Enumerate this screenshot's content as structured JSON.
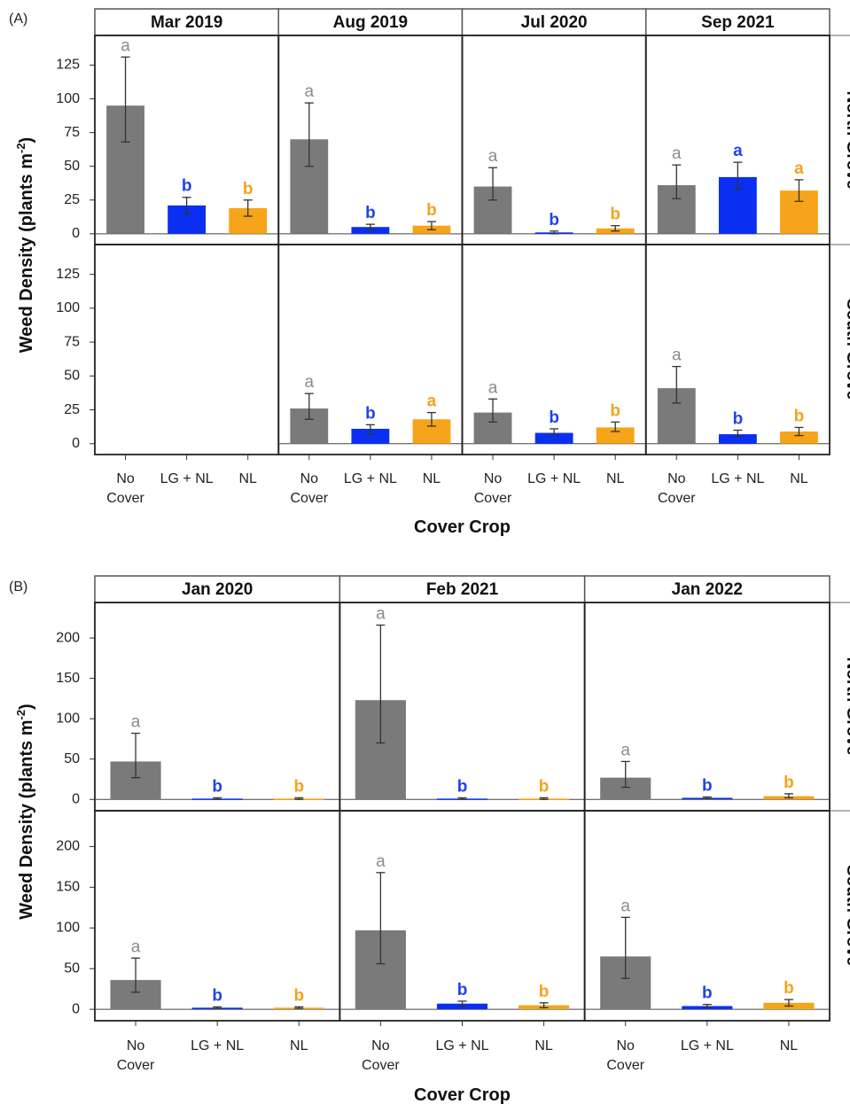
{
  "colors": {
    "no_cover": "#7a7a7a",
    "lg_nl": "#0a2ff2",
    "nl": "#f6a419",
    "letter_no_cover": "#8c8c8c",
    "letter_lg_nl": "#1f44e6",
    "letter_nl": "#f5a21c"
  },
  "chart_data": [
    {
      "type": "bar",
      "panel_label": "(A)",
      "xlabel": "Cover Crop",
      "ylabel": "Weed Density (plants m",
      "ylabel_sup": "-2",
      "ylabel_tail": ")",
      "categories": [
        "No Cover",
        "LG + NL",
        "NL"
      ],
      "category_lines": [
        [
          "No",
          "Cover"
        ],
        [
          "LG + NL"
        ],
        [
          "NL"
        ]
      ],
      "columns": [
        "Mar 2019",
        "Aug 2019",
        "Jul 2020",
        "Sep 2021"
      ],
      "rows": [
        "North Grove",
        "South Grove"
      ],
      "ylim": [
        -8,
        147
      ],
      "yticks": [
        0,
        25,
        50,
        75,
        100,
        125
      ],
      "cells": [
        [
          {
            "values": [
              95,
              21,
              19
            ],
            "err_low": [
              68,
              15,
              13
            ],
            "err_high": [
              131,
              27,
              25
            ],
            "letters": [
              "a",
              "b",
              "b"
            ]
          },
          {
            "values": [
              70,
              5,
              6
            ],
            "err_low": [
              50,
              3,
              3
            ],
            "err_high": [
              97,
              7,
              9
            ],
            "letters": [
              "a",
              "b",
              "b"
            ]
          },
          {
            "values": [
              35,
              1,
              4
            ],
            "err_low": [
              25,
              0,
              2
            ],
            "err_high": [
              49,
              2,
              6
            ],
            "letters": [
              "a",
              "b",
              "b"
            ]
          },
          {
            "values": [
              36,
              42,
              32
            ],
            "err_low": [
              26,
              33,
              24
            ],
            "err_high": [
              51,
              53,
              40
            ],
            "letters": [
              "a",
              "a",
              "a"
            ]
          }
        ],
        [
          null,
          {
            "values": [
              26,
              11,
              18
            ],
            "err_low": [
              18,
              7,
              13
            ],
            "err_high": [
              37,
              14,
              23
            ],
            "letters": [
              "a",
              "b",
              "a"
            ]
          },
          {
            "values": [
              23,
              8,
              12
            ],
            "err_low": [
              16,
              6,
              9
            ],
            "err_high": [
              33,
              11,
              16
            ],
            "letters": [
              "a",
              "b",
              "b"
            ]
          },
          {
            "values": [
              41,
              7,
              9
            ],
            "err_low": [
              30,
              5,
              6
            ],
            "err_high": [
              57,
              10,
              12
            ],
            "letters": [
              "a",
              "b",
              "b"
            ]
          }
        ]
      ]
    },
    {
      "type": "bar",
      "panel_label": "(B)",
      "xlabel": "Cover Crop",
      "ylabel": "Weed Density (plants m",
      "ylabel_sup": "-2",
      "ylabel_tail": ")",
      "categories": [
        "No Cover",
        "LG + NL",
        "NL"
      ],
      "category_lines": [
        [
          "No",
          "Cover"
        ],
        [
          "LG + NL"
        ],
        [
          "NL"
        ]
      ],
      "columns": [
        "Jan 2020",
        "Feb 2021",
        "Jan 2022"
      ],
      "rows": [
        "North Grove",
        "South Grove"
      ],
      "ylim": [
        -14,
        244
      ],
      "yticks": [
        0,
        50,
        100,
        150,
        200
      ],
      "cells": [
        [
          {
            "values": [
              47,
              1,
              1
            ],
            "err_low": [
              27,
              0,
              0
            ],
            "err_high": [
              82,
              2,
              2
            ],
            "letters": [
              "a",
              "b",
              "b"
            ]
          },
          {
            "values": [
              123,
              1,
              1
            ],
            "err_low": [
              70,
              0,
              0
            ],
            "err_high": [
              216,
              2,
              2
            ],
            "letters": [
              "a",
              "b",
              "b"
            ]
          },
          {
            "values": [
              27,
              2,
              4
            ],
            "err_low": [
              15,
              1,
              2
            ],
            "err_high": [
              47,
              3,
              7
            ],
            "letters": [
              "a",
              "b",
              "b"
            ]
          }
        ],
        [
          {
            "values": [
              36,
              2,
              2
            ],
            "err_low": [
              21,
              1,
              1
            ],
            "err_high": [
              63,
              3,
              3
            ],
            "letters": [
              "a",
              "b",
              "b"
            ]
          },
          {
            "values": [
              97,
              7,
              5
            ],
            "err_low": [
              56,
              4,
              2
            ],
            "err_high": [
              168,
              10,
              8
            ],
            "letters": [
              "a",
              "b",
              "b"
            ]
          },
          {
            "values": [
              65,
              4,
              8
            ],
            "err_low": [
              38,
              2,
              4
            ],
            "err_high": [
              113,
              6,
              12
            ],
            "letters": [
              "a",
              "b",
              "b"
            ]
          }
        ]
      ]
    }
  ]
}
